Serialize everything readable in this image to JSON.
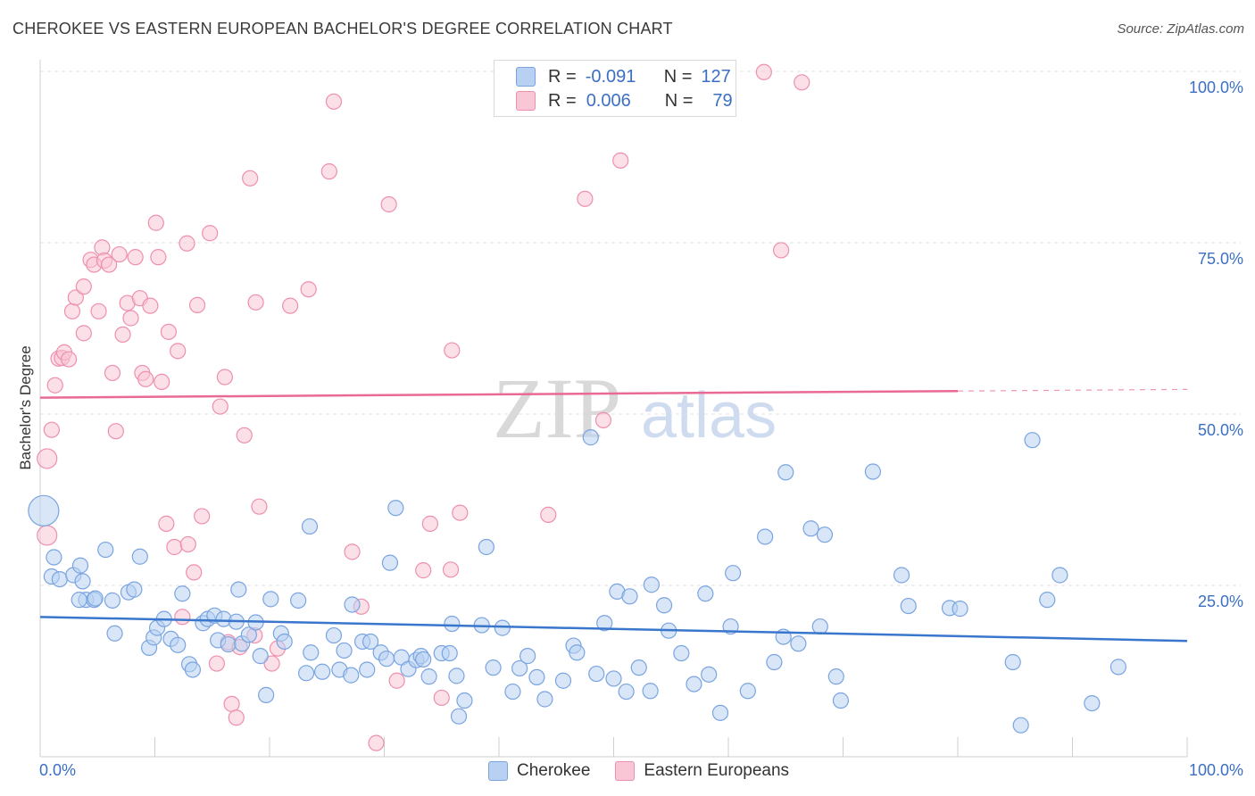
{
  "title": "CHEROKEE VS EASTERN EUROPEAN BACHELOR'S DEGREE CORRELATION CHART",
  "source": "Source: ZipAtlas.com",
  "watermark": {
    "zip": "ZIP",
    "atlas": "atlas"
  },
  "legend_top": {
    "r_label": "R =",
    "n_label": "N =",
    "series": [
      {
        "name": "Cherokee",
        "r": "-0.091",
        "n": "127",
        "fill": "#b8d1f3",
        "stroke": "#7aa4e0"
      },
      {
        "name": "Eastern Europeans",
        "r": "0.006",
        "n": "79",
        "fill": "#f9c6d6",
        "stroke": "#ee8fad"
      }
    ]
  },
  "bottom_legend": [
    {
      "label": "Cherokee",
      "fill": "#b8d1f3",
      "stroke": "#7aa4e0"
    },
    {
      "label": "Eastern Europeans",
      "fill": "#f9c6d6",
      "stroke": "#ee8fad"
    }
  ],
  "chart_data": {
    "type": "scatter",
    "title": "CHEROKEE VS EASTERN EUROPEAN BACHELOR'S DEGREE CORRELATION CHART",
    "xlabel": "",
    "ylabel": "Bachelor's Degree",
    "xlim": [
      0,
      100
    ],
    "ylim": [
      0,
      100
    ],
    "x_tick_labels": [
      "0.0%",
      "100.0%"
    ],
    "y_tick_labels": [
      "100.0%",
      "75.0%",
      "50.0%",
      "25.0%"
    ],
    "y_tick_values": [
      100,
      75,
      50,
      25
    ],
    "grid": true,
    "colors": {
      "blue": "#3a77cc",
      "pink": "#e96a92",
      "axis_label": "#3a6fc4"
    },
    "series": [
      {
        "name": "Cherokee",
        "color": "#7aa4e0",
        "fill": "#b8d1f3",
        "trend": {
          "x0": 0,
          "y0": 20.4,
          "x1": 100,
          "y1": 16.9,
          "solid_until": 100
        },
        "points": [
          [
            1.2,
            29.1
          ],
          [
            1.0,
            26.3
          ],
          [
            1.7,
            25.9
          ],
          [
            2.9,
            26.5
          ],
          [
            3.5,
            27.9
          ],
          [
            3.7,
            25.6
          ],
          [
            4.0,
            22.9
          ],
          [
            3.4,
            22.9
          ],
          [
            4.7,
            22.9
          ],
          [
            4.8,
            23.1
          ],
          [
            5.7,
            30.2
          ],
          [
            6.3,
            22.8
          ],
          [
            6.5,
            18.0
          ],
          [
            7.7,
            24.0
          ],
          [
            8.2,
            24.4
          ],
          [
            8.7,
            29.2
          ],
          [
            9.5,
            15.9
          ],
          [
            9.9,
            17.4
          ],
          [
            10.2,
            18.8
          ],
          [
            10.8,
            20.1
          ],
          [
            11.4,
            17.2
          ],
          [
            12.0,
            16.3
          ],
          [
            12.4,
            23.8
          ],
          [
            13.0,
            13.5
          ],
          [
            13.3,
            12.7
          ],
          [
            14.2,
            19.5
          ],
          [
            14.6,
            20.1
          ],
          [
            15.2,
            20.6
          ],
          [
            15.5,
            17.0
          ],
          [
            16.0,
            20.1
          ],
          [
            16.4,
            16.4
          ],
          [
            17.1,
            19.7
          ],
          [
            17.3,
            24.4
          ],
          [
            17.6,
            16.5
          ],
          [
            18.2,
            17.8
          ],
          [
            18.8,
            19.6
          ],
          [
            19.2,
            14.7
          ],
          [
            19.7,
            9.0
          ],
          [
            20.1,
            23.0
          ],
          [
            21.0,
            18.0
          ],
          [
            21.3,
            16.8
          ],
          [
            22.5,
            22.8
          ],
          [
            23.2,
            12.2
          ],
          [
            23.6,
            15.2
          ],
          [
            23.5,
            33.6
          ],
          [
            24.6,
            12.4
          ],
          [
            25.6,
            17.7
          ],
          [
            26.1,
            12.7
          ],
          [
            26.5,
            15.5
          ],
          [
            27.1,
            11.9
          ],
          [
            27.2,
            22.2
          ],
          [
            28.1,
            16.8
          ],
          [
            28.5,
            12.7
          ],
          [
            28.8,
            16.8
          ],
          [
            29.7,
            15.2
          ],
          [
            30.2,
            14.3
          ],
          [
            30.5,
            28.3
          ],
          [
            31.0,
            36.3
          ],
          [
            31.5,
            14.5
          ],
          [
            32.1,
            12.8
          ],
          [
            32.8,
            14.1
          ],
          [
            33.2,
            14.7
          ],
          [
            33.4,
            14.2
          ],
          [
            33.9,
            11.7
          ],
          [
            35.0,
            15.1
          ],
          [
            35.7,
            15.1
          ],
          [
            35.9,
            19.4
          ],
          [
            36.3,
            11.8
          ],
          [
            36.5,
            5.9
          ],
          [
            37.0,
            8.2
          ],
          [
            38.5,
            19.2
          ],
          [
            38.9,
            30.6
          ],
          [
            39.5,
            13.0
          ],
          [
            40.3,
            18.8
          ],
          [
            41.2,
            9.5
          ],
          [
            41.8,
            12.9
          ],
          [
            42.5,
            14.7
          ],
          [
            43.3,
            11.6
          ],
          [
            44.0,
            8.4
          ],
          [
            45.6,
            11.1
          ],
          [
            46.5,
            16.2
          ],
          [
            46.8,
            15.2
          ],
          [
            48.0,
            46.6
          ],
          [
            48.5,
            12.1
          ],
          [
            49.2,
            19.5
          ],
          [
            50.0,
            11.4
          ],
          [
            50.3,
            24.1
          ],
          [
            51.1,
            9.5
          ],
          [
            51.4,
            23.4
          ],
          [
            52.2,
            13.0
          ],
          [
            53.2,
            9.6
          ],
          [
            53.3,
            25.1
          ],
          [
            54.4,
            22.1
          ],
          [
            54.8,
            18.4
          ],
          [
            55.9,
            15.1
          ],
          [
            57.0,
            10.6
          ],
          [
            58.0,
            23.8
          ],
          [
            58.3,
            12.0
          ],
          [
            59.3,
            6.4
          ],
          [
            60.2,
            19.0
          ],
          [
            60.4,
            26.8
          ],
          [
            61.7,
            9.6
          ],
          [
            63.2,
            32.1
          ],
          [
            64.0,
            13.8
          ],
          [
            64.8,
            17.5
          ],
          [
            65.0,
            41.5
          ],
          [
            66.1,
            16.5
          ],
          [
            67.2,
            33.3
          ],
          [
            68.0,
            19.0
          ],
          [
            68.4,
            32.4
          ],
          [
            69.4,
            11.7
          ],
          [
            69.8,
            8.2
          ],
          [
            72.6,
            41.6
          ],
          [
            75.1,
            26.5
          ],
          [
            75.7,
            22.0
          ],
          [
            79.3,
            21.7
          ],
          [
            80.2,
            21.6
          ],
          [
            84.8,
            13.8
          ],
          [
            85.5,
            4.6
          ],
          [
            86.5,
            46.2
          ],
          [
            87.8,
            22.9
          ],
          [
            88.9,
            26.5
          ],
          [
            91.7,
            7.8
          ],
          [
            94.0,
            13.1
          ],
          [
            0.3,
            35.9
          ]
        ]
      },
      {
        "name": "Eastern Europeans",
        "color": "#ee8fad",
        "fill": "#f9c6d6",
        "trend": {
          "x0": 0,
          "y0": 52.4,
          "x1": 100,
          "y1": 53.6,
          "solid_until": 80
        },
        "points": [
          [
            0.6,
            32.3
          ],
          [
            0.6,
            43.5
          ],
          [
            1.0,
            47.7
          ],
          [
            1.3,
            54.2
          ],
          [
            1.6,
            58.1
          ],
          [
            1.9,
            58.2
          ],
          [
            2.1,
            59.0
          ],
          [
            2.5,
            58.0
          ],
          [
            2.8,
            65.0
          ],
          [
            3.1,
            67.0
          ],
          [
            3.8,
            68.6
          ],
          [
            3.8,
            61.8
          ],
          [
            4.4,
            72.5
          ],
          [
            4.7,
            71.8
          ],
          [
            5.1,
            65.0
          ],
          [
            5.4,
            74.3
          ],
          [
            5.6,
            72.4
          ],
          [
            6.0,
            71.8
          ],
          [
            6.3,
            56.0
          ],
          [
            6.6,
            47.5
          ],
          [
            6.9,
            73.3
          ],
          [
            7.2,
            61.6
          ],
          [
            7.6,
            66.2
          ],
          [
            7.9,
            64.0
          ],
          [
            8.3,
            72.9
          ],
          [
            8.7,
            66.9
          ],
          [
            8.9,
            56.0
          ],
          [
            9.2,
            55.1
          ],
          [
            9.6,
            65.8
          ],
          [
            10.1,
            77.9
          ],
          [
            10.3,
            72.9
          ],
          [
            10.6,
            54.7
          ],
          [
            11.0,
            34.0
          ],
          [
            11.2,
            62.0
          ],
          [
            11.7,
            30.6
          ],
          [
            12.0,
            59.2
          ],
          [
            12.4,
            20.4
          ],
          [
            12.8,
            74.9
          ],
          [
            12.9,
            31.0
          ],
          [
            13.4,
            26.9
          ],
          [
            13.7,
            65.9
          ],
          [
            14.1,
            35.1
          ],
          [
            14.8,
            76.4
          ],
          [
            15.4,
            13.6
          ],
          [
            15.7,
            51.1
          ],
          [
            16.1,
            55.4
          ],
          [
            16.4,
            16.7
          ],
          [
            16.7,
            7.7
          ],
          [
            17.1,
            5.7
          ],
          [
            17.4,
            16.0
          ],
          [
            17.8,
            46.9
          ],
          [
            18.3,
            84.4
          ],
          [
            18.7,
            17.7
          ],
          [
            18.8,
            66.3
          ],
          [
            19.1,
            36.5
          ],
          [
            20.2,
            13.6
          ],
          [
            20.7,
            15.8
          ],
          [
            21.8,
            65.8
          ],
          [
            23.4,
            68.2
          ],
          [
            25.2,
            85.4
          ],
          [
            25.6,
            95.6
          ],
          [
            27.2,
            29.9
          ],
          [
            28.0,
            21.9
          ],
          [
            29.3,
            2.0
          ],
          [
            30.4,
            80.6
          ],
          [
            31.1,
            11.1
          ],
          [
            33.4,
            27.2
          ],
          [
            34.0,
            34.0
          ],
          [
            35.0,
            8.6
          ],
          [
            35.8,
            27.3
          ],
          [
            35.9,
            59.3
          ],
          [
            36.6,
            35.6
          ],
          [
            44.3,
            35.3
          ],
          [
            47.5,
            81.4
          ],
          [
            49.1,
            49.1
          ],
          [
            50.6,
            87.0
          ],
          [
            63.1,
            99.9
          ],
          [
            64.6,
            73.9
          ],
          [
            66.4,
            98.4
          ]
        ]
      }
    ]
  }
}
